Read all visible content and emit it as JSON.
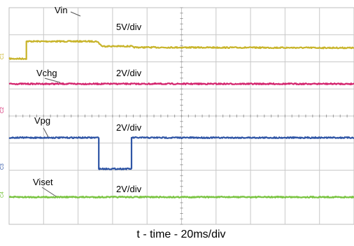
{
  "chart_data": {
    "type": "line",
    "title": "",
    "xlabel": "t - time - 20ms/div",
    "ylabel": "",
    "x_unit": "ms",
    "xlim": [
      0,
      200
    ],
    "grid": true,
    "legend": "none",
    "series": [
      {
        "name": "Vin",
        "color": "#c8b42a",
        "scale": "5V/div",
        "channel_marker": "C1",
        "points": [
          [
            0,
            0
          ],
          [
            10,
            0
          ],
          [
            10,
            3.2
          ],
          [
            51,
            3.2
          ],
          [
            53,
            2.6
          ],
          [
            54,
            2.3
          ],
          [
            71,
            2.3
          ],
          [
            72,
            2.1
          ],
          [
            200,
            2.0
          ]
        ]
      },
      {
        "name": "Vchg",
        "color": "#d4256e",
        "scale": "2V/div",
        "channel_marker": "C2",
        "points": [
          [
            0,
            0
          ],
          [
            200,
            0
          ]
        ]
      },
      {
        "name": "Vpg",
        "color": "#2f55a5",
        "scale": "2V/div",
        "channel_marker": "C3",
        "points": [
          [
            0,
            0
          ],
          [
            52,
            0
          ],
          [
            52,
            -2.3
          ],
          [
            71,
            -2.3
          ],
          [
            71,
            0
          ],
          [
            200,
            0
          ]
        ]
      },
      {
        "name": "Viset",
        "color": "#79c440",
        "scale": "2V/div",
        "channel_marker": "C4",
        "points": [
          [
            0,
            0
          ],
          [
            200,
            0
          ]
        ]
      }
    ]
  },
  "labels": {
    "vin": "Vin",
    "vin_scale": "5V/div",
    "vchg": "Vchg",
    "vchg_scale": "2V/div",
    "vpg": "Vpg",
    "vpg_scale": "2V/div",
    "viset": "Viset",
    "viset_scale": "2V/div",
    "xaxis": "t - time - 20ms/div",
    "marker_c1": "C1",
    "marker_c2": "C2",
    "marker_c3": "C3",
    "marker_c4": "C4"
  }
}
